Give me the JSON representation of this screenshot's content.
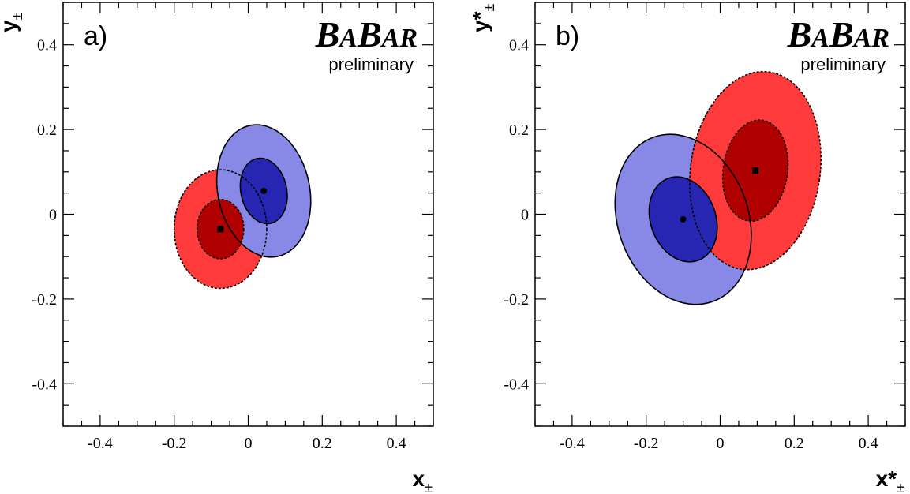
{
  "chart_data": [
    {
      "type": "scatter",
      "panel_label": "a)",
      "logo": "BABAR",
      "logo_subtitle": "preliminary",
      "xlabel": {
        "base": "x",
        "star": "",
        "sub": "±"
      },
      "ylabel": {
        "base": "y",
        "star": "",
        "sub": "±"
      },
      "xlim": [
        -0.5,
        0.5
      ],
      "ylim": [
        -0.5,
        0.5
      ],
      "xticks": [
        -0.4,
        -0.2,
        0,
        0.2,
        0.4
      ],
      "yticks": [
        -0.4,
        -0.2,
        0,
        0.2,
        0.4
      ],
      "x_tick_labels": [
        "-0.4",
        "-0.2",
        "0",
        "0.2",
        "0.4"
      ],
      "y_tick_labels": [
        "-0.4",
        "-0.2",
        "0",
        "0.2",
        "0.4"
      ],
      "grid": false,
      "series": [
        {
          "color_outer": "#ff3a3a",
          "color_inner": "#b00000",
          "line_style": "dashed",
          "marker": "square",
          "center": [
            -0.075,
            -0.035
          ],
          "contours": [
            {
              "level": "inner",
              "rx": 0.063,
              "ry": 0.07,
              "angle_deg": 0
            },
            {
              "level": "outer",
              "rx": 0.125,
              "ry": 0.14,
              "angle_deg": 0
            }
          ]
        },
        {
          "color_outer": "#8888e6",
          "color_inner": "#2626b2",
          "line_style": "solid",
          "marker": "circle",
          "center": [
            0.042,
            0.055
          ],
          "contours": [
            {
              "level": "inner",
              "rx": 0.062,
              "ry": 0.078,
              "angle_deg": 12
            },
            {
              "level": "outer",
              "rx": 0.124,
              "ry": 0.158,
              "angle_deg": 12
            }
          ]
        }
      ]
    },
    {
      "type": "scatter",
      "panel_label": "b)",
      "logo": "BABAR",
      "logo_subtitle": "preliminary",
      "xlabel": {
        "base": "x",
        "star": "*",
        "sub": "±"
      },
      "ylabel": {
        "base": "y",
        "star": "*",
        "sub": "±"
      },
      "xlim": [
        -0.5,
        0.5
      ],
      "ylim": [
        -0.5,
        0.5
      ],
      "xticks": [
        -0.4,
        -0.2,
        0,
        0.2,
        0.4
      ],
      "yticks": [
        -0.4,
        -0.2,
        0,
        0.2,
        0.4
      ],
      "x_tick_labels": [
        "-0.4",
        "-0.2",
        "0",
        "0.2",
        "0.4"
      ],
      "y_tick_labels": [
        "-0.4",
        "-0.2",
        "0",
        "0.2",
        "0.4"
      ],
      "grid": false,
      "series": [
        {
          "color_outer": "#8888e6",
          "color_inner": "#2626b2",
          "line_style": "solid",
          "marker": "circle",
          "center": [
            -0.1,
            -0.012
          ],
          "contours": [
            {
              "level": "inner",
              "rx": 0.088,
              "ry": 0.103,
              "angle_deg": 20
            },
            {
              "level": "outer",
              "rx": 0.176,
              "ry": 0.206,
              "angle_deg": 20
            }
          ]
        },
        {
          "color_outer": "#ff3a3a",
          "color_inner": "#b00000",
          "line_style": "dashed",
          "marker": "square",
          "center": [
            0.095,
            0.103
          ],
          "contours": [
            {
              "level": "inner",
              "rx": 0.087,
              "ry": 0.12,
              "angle_deg": -8
            },
            {
              "level": "outer",
              "rx": 0.175,
              "ry": 0.235,
              "angle_deg": -8
            }
          ]
        }
      ]
    }
  ]
}
